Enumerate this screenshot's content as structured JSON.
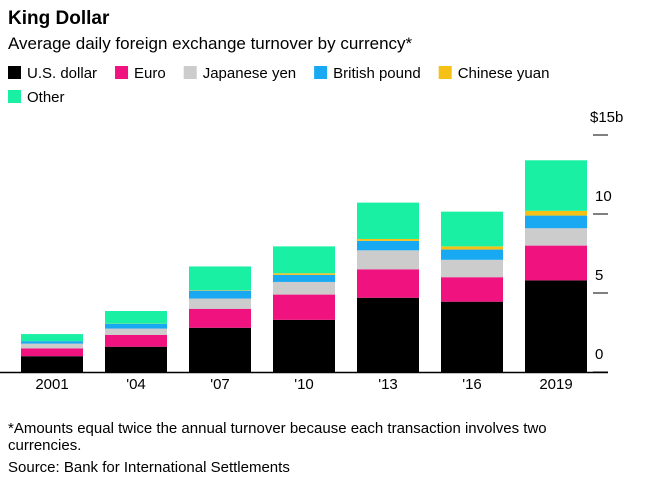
{
  "chart_data": {
    "type": "stacked-bar",
    "title": "King Dollar",
    "subtitle": "Average daily foreign exchange turnover by currency*",
    "categories": [
      "2001",
      "'04",
      "'07",
      "'10",
      "'13",
      "'16",
      "2019"
    ],
    "series": [
      {
        "name": "U.S. dollar",
        "color": "#000000",
        "values": [
          1.0,
          1.6,
          2.8,
          3.3,
          4.7,
          4.45,
          5.8
        ]
      },
      {
        "name": "Euro",
        "color": "#f0127f",
        "values": [
          0.5,
          0.75,
          1.2,
          1.6,
          1.8,
          1.55,
          2.2
        ]
      },
      {
        "name": "Japanese yen",
        "color": "#cccccc",
        "values": [
          0.3,
          0.4,
          0.65,
          0.8,
          1.2,
          1.1,
          1.1
        ]
      },
      {
        "name": "British pound",
        "color": "#18a9f2",
        "values": [
          0.15,
          0.3,
          0.5,
          0.45,
          0.6,
          0.65,
          0.8
        ]
      },
      {
        "name": "Chinese yuan",
        "color": "#f5c116",
        "values": [
          0,
          0.01,
          0.03,
          0.1,
          0.12,
          0.2,
          0.3
        ]
      },
      {
        "name": "Other",
        "color": "#19f0a3",
        "values": [
          0.45,
          0.8,
          1.5,
          1.7,
          2.3,
          2.2,
          3.2
        ]
      }
    ],
    "ylim": [
      0,
      15
    ],
    "yticks": [
      0,
      5,
      10,
      {
        "value": 15,
        "label": "$15b"
      }
    ],
    "footnote": "*Amounts equal twice the annual turnover because each transaction involves two currencies.",
    "source": "Source: Bank for International Settlements"
  }
}
